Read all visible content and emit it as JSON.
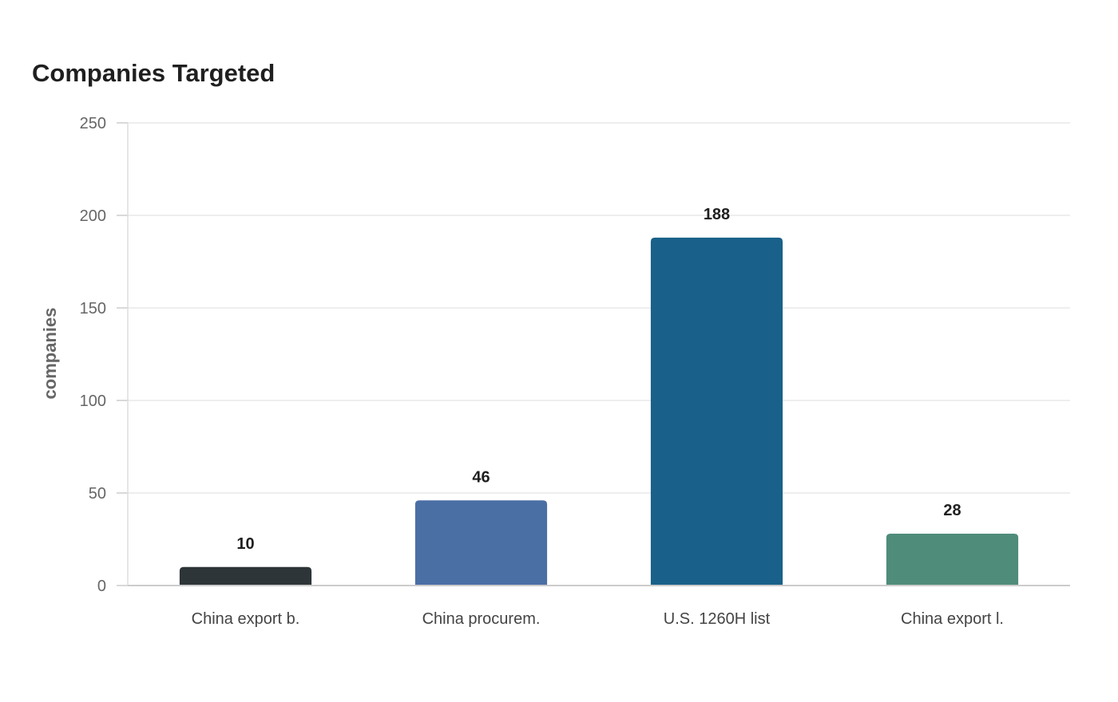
{
  "chart_data": {
    "type": "bar",
    "title": "Companies Targeted",
    "xlabel": "",
    "ylabel": "companies",
    "ylim": [
      0,
      250
    ],
    "yticks": [
      0,
      50,
      100,
      150,
      200,
      250
    ],
    "categories": [
      "China export b.",
      "China procurem.",
      "U.S. 1260H list",
      "China export l."
    ],
    "values": [
      10,
      46,
      188,
      28
    ],
    "colors": [
      "#2e3538",
      "#4a6fa5",
      "#19618a",
      "#4f8c7a"
    ],
    "grid": true,
    "legend": "none"
  }
}
